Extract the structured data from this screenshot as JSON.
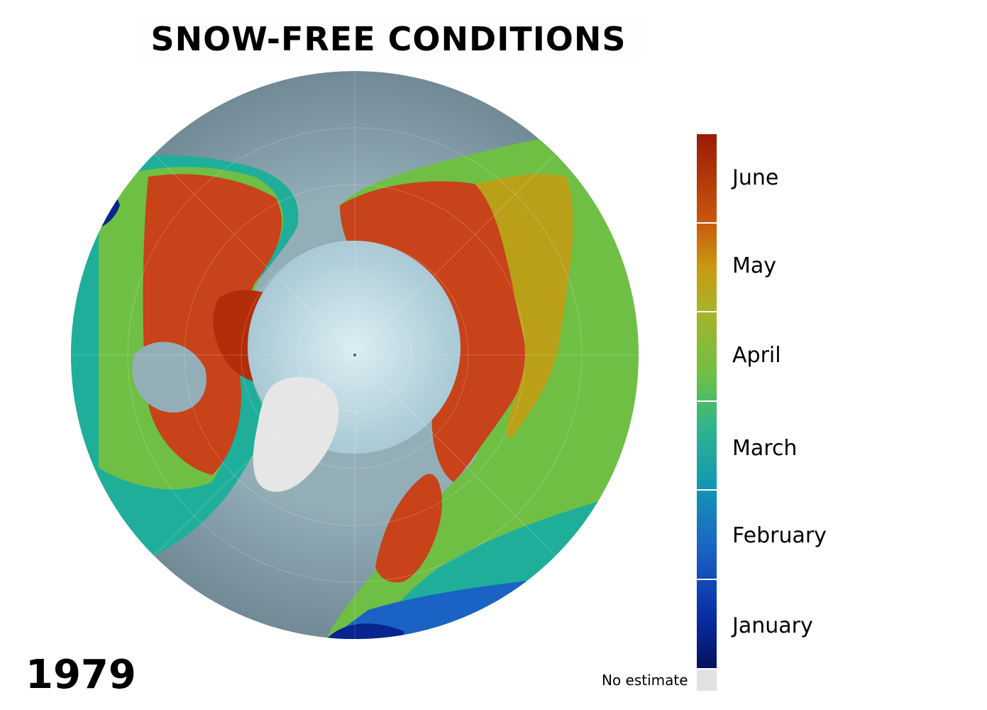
{
  "title": "SNOW-FREE CONDITIONS",
  "year": "1979",
  "legend": {
    "months": [
      "June",
      "May",
      "April",
      "March",
      "February",
      "January"
    ],
    "no_estimate": "No estimate"
  },
  "colors": {
    "ocean": "#7f97a2",
    "arctic_ice": "#c9e3ea",
    "greenland": "#e6e6e6",
    "june": "#b32d0a",
    "may": "#c89a12",
    "april": "#6fbf45",
    "march": "#1fae9a",
    "february": "#1a62c4",
    "january": "#082590",
    "no_estimate": "#e2e2e2"
  }
}
